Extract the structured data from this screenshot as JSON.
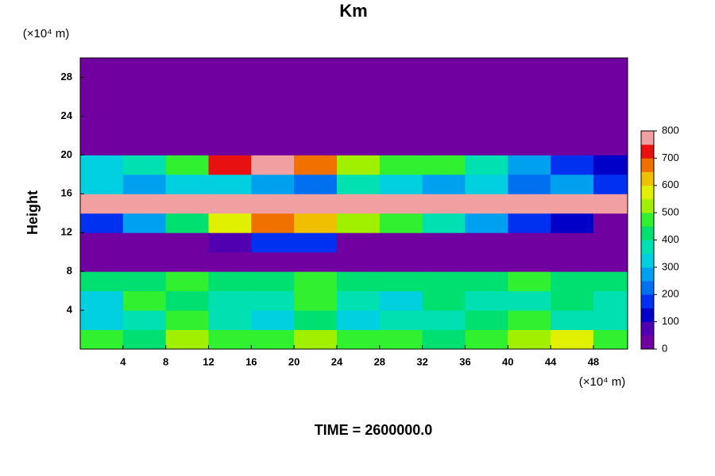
{
  "chart_data": {
    "type": "heatmap",
    "title": "Km",
    "y_label": "Height",
    "y_unit": "(×10⁴ m)",
    "x_unit": "(×10⁴ m)",
    "footer": "TIME = 2600000.0",
    "xlim": [
      0,
      51.2
    ],
    "ylim": [
      0,
      30
    ],
    "xticks": [
      4,
      8,
      12,
      16,
      20,
      24,
      28,
      32,
      36,
      40,
      44,
      48
    ],
    "yticks": [
      4,
      8,
      12,
      16,
      20,
      24,
      28
    ],
    "x": [
      2,
      6,
      10,
      14,
      18,
      22,
      26,
      30,
      34,
      38,
      42,
      46,
      50
    ],
    "y": [
      1,
      3,
      5,
      7,
      9,
      11,
      13,
      15,
      17,
      19,
      21,
      23,
      25,
      27,
      29
    ],
    "z": [
      [
        450,
        400,
        500,
        450,
        450,
        500,
        450,
        450,
        400,
        450,
        500,
        550,
        450
      ],
      [
        300,
        350,
        450,
        350,
        300,
        400,
        300,
        350,
        350,
        400,
        450,
        350,
        350
      ],
      [
        300,
        450,
        400,
        350,
        350,
        450,
        350,
        300,
        400,
        350,
        350,
        400,
        350
      ],
      [
        400,
        400,
        450,
        400,
        400,
        450,
        400,
        400,
        400,
        400,
        450,
        400,
        400
      ],
      [
        0,
        0,
        0,
        0,
        0,
        0,
        0,
        0,
        0,
        0,
        0,
        0,
        0
      ],
      [
        0,
        0,
        0,
        50,
        150,
        150,
        0,
        0,
        0,
        0,
        0,
        0,
        0
      ],
      [
        150,
        250,
        400,
        550,
        650,
        600,
        500,
        450,
        350,
        250,
        150,
        100,
        0
      ],
      [
        800,
        750,
        800,
        800,
        800,
        800,
        800,
        800,
        800,
        800,
        800,
        800,
        750
      ],
      [
        300,
        250,
        300,
        300,
        250,
        200,
        350,
        300,
        250,
        300,
        200,
        250,
        150
      ],
      [
        300,
        350,
        450,
        700,
        750,
        650,
        500,
        450,
        450,
        350,
        250,
        150,
        100
      ],
      [
        0,
        0,
        0,
        0,
        0,
        0,
        0,
        0,
        0,
        0,
        0,
        0,
        0
      ],
      [
        0,
        0,
        0,
        0,
        0,
        0,
        0,
        0,
        0,
        0,
        0,
        0,
        0
      ],
      [
        0,
        0,
        0,
        0,
        0,
        0,
        0,
        0,
        0,
        0,
        0,
        0,
        0
      ],
      [
        0,
        0,
        0,
        0,
        0,
        0,
        0,
        0,
        0,
        0,
        0,
        0,
        0
      ],
      [
        0,
        0,
        0,
        0,
        0,
        0,
        0,
        0,
        0,
        0,
        0,
        0,
        0
      ]
    ],
    "clim": [
      0,
      800
    ],
    "cticks": [
      0,
      100,
      200,
      300,
      400,
      500,
      600,
      700,
      800
    ],
    "colors": [
      "#7000a0",
      "#5000b0",
      "#0000c8",
      "#0030f0",
      "#0070f0",
      "#00a0f0",
      "#00d0e0",
      "#00e0b0",
      "#00e070",
      "#30f030",
      "#a0f000",
      "#e0f000",
      "#f0c000",
      "#f07000",
      "#e81010",
      "#f0a0a0"
    ]
  }
}
